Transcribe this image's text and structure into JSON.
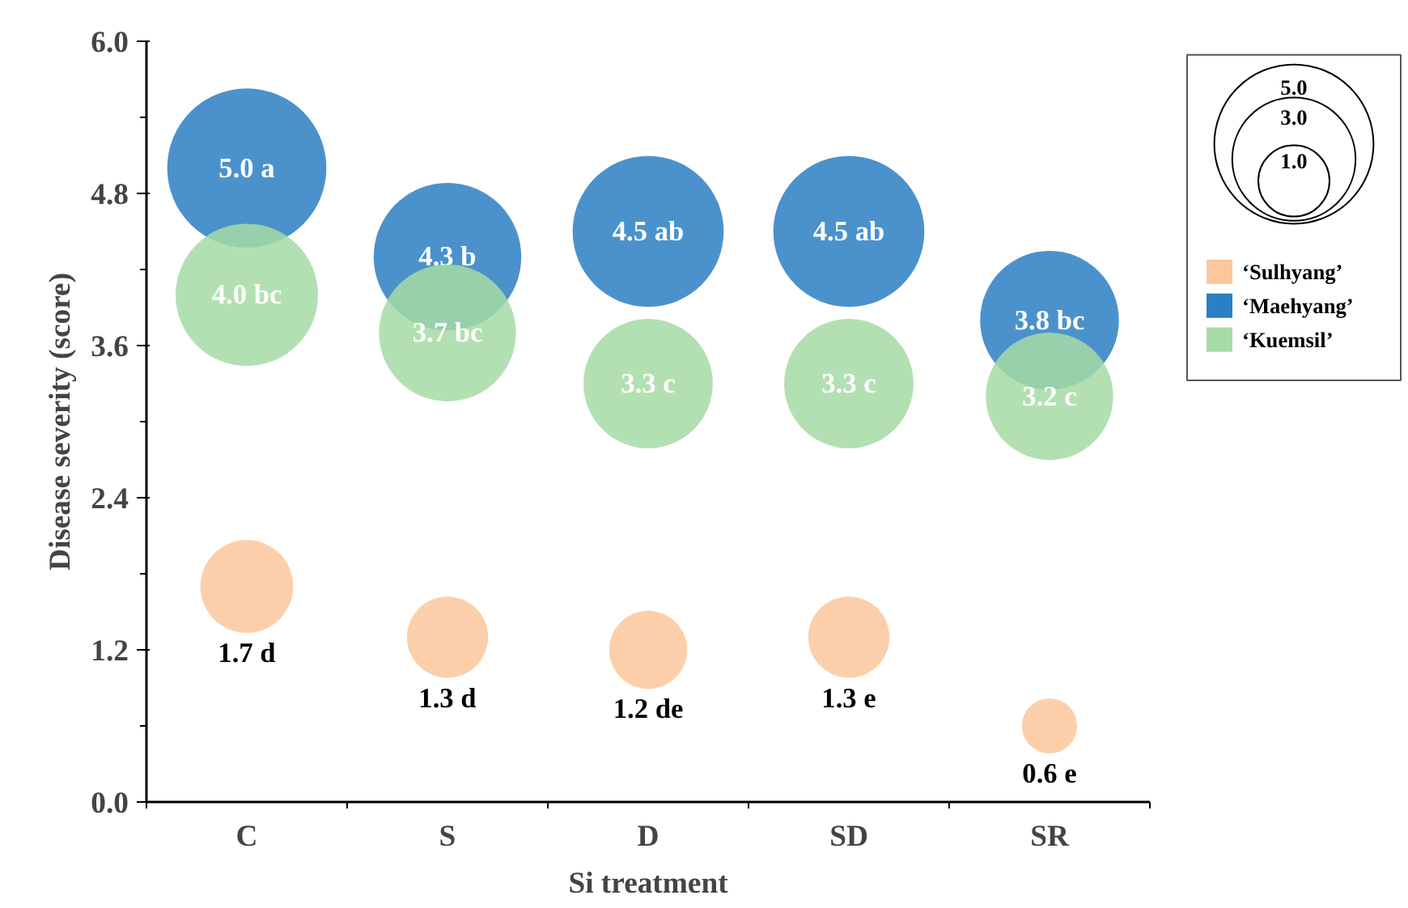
{
  "chart_data": {
    "type": "bubble",
    "xlabel": "Si treatment",
    "ylabel": "Disease severity (score)",
    "categories": [
      "C",
      "S",
      "D",
      "SD",
      "SR"
    ],
    "ylim": [
      0,
      6
    ],
    "yticks": [
      {
        "value": 0,
        "label": "0.0"
      },
      {
        "value": 1.2,
        "label": "1.2"
      },
      {
        "value": 2.4,
        "label": "2.4"
      },
      {
        "value": 3.6,
        "label": "3.6"
      },
      {
        "value": 4.8,
        "label": "4.8"
      },
      {
        "value": 6,
        "label": "6.0"
      }
    ],
    "size_legend": [
      {
        "value": 5,
        "label": "5.0"
      },
      {
        "value": 3,
        "label": "3.0"
      },
      {
        "value": 1,
        "label": "1.0"
      }
    ],
    "series": [
      {
        "name": "‘Sulhyang’",
        "color": "#fcc79b",
        "values": [
          1.7,
          1.3,
          1.2,
          1.3,
          0.6
        ],
        "sizes": [
          1.7,
          1.3,
          1.2,
          1.3,
          0.6
        ],
        "value_labels": [
          "1.7 d",
          "1.3 d",
          "1.2 de",
          "1.3 e",
          "0.6 e"
        ]
      },
      {
        "name": "‘Maehyang’",
        "color": "#2b7fc3",
        "values": [
          5.0,
          4.3,
          4.5,
          4.5,
          3.8
        ],
        "sizes": [
          5.0,
          4.3,
          4.5,
          4.5,
          3.8
        ],
        "value_labels": [
          "5.0 a",
          "4.3 b",
          "4.5 ab",
          "4.5 ab",
          "3.8 bc"
        ]
      },
      {
        "name": "‘Kuemsil’",
        "color": "#a6dba6",
        "values": [
          4.0,
          3.7,
          3.3,
          3.3,
          3.2
        ],
        "sizes": [
          4.0,
          3.7,
          3.3,
          3.3,
          3.2
        ],
        "value_labels": [
          "4.0 bc",
          "3.7 bc",
          "3.3 c",
          "3.3 c",
          "3.2 c"
        ]
      }
    ],
    "legend": "top right",
    "grid": false
  }
}
